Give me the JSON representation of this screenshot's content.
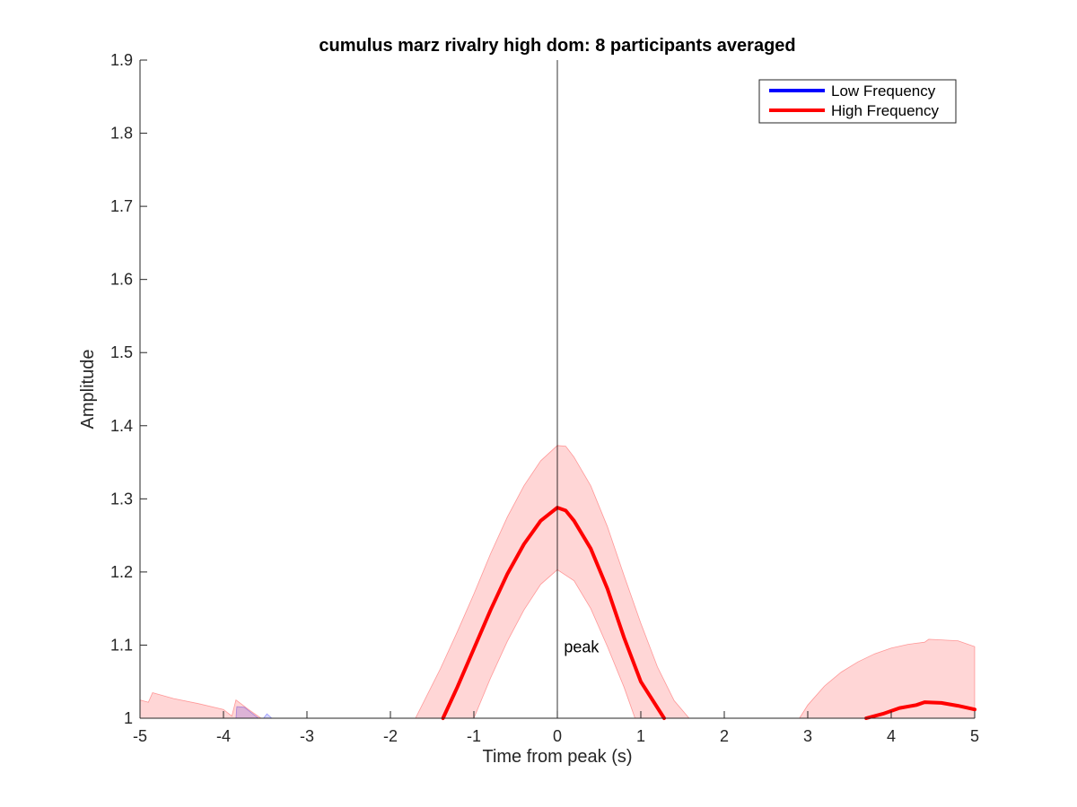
{
  "chart_data": {
    "type": "line",
    "title": "cumulus marz rivalry high dom: 8 participants averaged",
    "xlabel": "Time from peak (s)",
    "ylabel": "Amplitude",
    "xlim": [
      -5,
      5
    ],
    "ylim": [
      1,
      1.9
    ],
    "xticks": [
      -5,
      -4,
      -3,
      -2,
      -1,
      0,
      1,
      2,
      3,
      4,
      5
    ],
    "yticks": [
      1,
      1.1,
      1.2,
      1.3,
      1.4,
      1.5,
      1.6,
      1.7,
      1.8,
      1.9
    ],
    "grid": false,
    "legend_position": "top-right",
    "reference_line_x": 0,
    "annotations": [
      {
        "text": "peak",
        "x": 0.08,
        "y": 1.09
      }
    ],
    "series": [
      {
        "name": "Low Frequency",
        "color": "#0000ff",
        "line": [],
        "band_upper_segments": [
          [
            [
              -3.85,
              1.0
            ],
            [
              -3.84,
              1.016
            ],
            [
              -3.75,
              1.015
            ],
            [
              -3.65,
              1.006
            ],
            [
              -3.58,
              1.0
            ]
          ],
          [
            [
              -3.52,
              1.0
            ],
            [
              -3.48,
              1.006
            ],
            [
              -3.42,
              1.0
            ]
          ]
        ]
      },
      {
        "name": "High Frequency",
        "color": "#ff0000",
        "line_segments": [
          [
            [
              -1.37,
              1.0
            ],
            [
              -1.2,
              1.042
            ],
            [
              -1.0,
              1.095
            ],
            [
              -0.8,
              1.148
            ],
            [
              -0.6,
              1.197
            ],
            [
              -0.4,
              1.238
            ],
            [
              -0.2,
              1.27
            ],
            [
              0.0,
              1.288
            ],
            [
              0.1,
              1.284
            ],
            [
              0.2,
              1.27
            ],
            [
              0.4,
              1.232
            ],
            [
              0.6,
              1.177
            ],
            [
              0.8,
              1.11
            ],
            [
              1.0,
              1.05
            ],
            [
              1.28,
              1.0
            ]
          ],
          [
            [
              3.7,
              1.0
            ],
            [
              3.9,
              1.006
            ],
            [
              4.1,
              1.014
            ],
            [
              4.3,
              1.018
            ],
            [
              4.4,
              1.022
            ],
            [
              4.6,
              1.021
            ],
            [
              4.8,
              1.017
            ],
            [
              5.0,
              1.012
            ]
          ]
        ],
        "band_upper_segments": [
          [
            [
              -5.0,
              1.025
            ],
            [
              -4.9,
              1.022
            ],
            [
              -4.85,
              1.035
            ],
            [
              -4.6,
              1.027
            ],
            [
              -4.3,
              1.02
            ],
            [
              -4.0,
              1.012
            ],
            [
              -3.9,
              1.003
            ],
            [
              -3.85,
              1.025
            ],
            [
              -3.7,
              1.012
            ],
            [
              -3.55,
              1.0
            ]
          ],
          [
            [
              -1.7,
              1.0
            ],
            [
              -1.4,
              1.068
            ],
            [
              -1.2,
              1.118
            ],
            [
              -1.0,
              1.17
            ],
            [
              -0.8,
              1.225
            ],
            [
              -0.6,
              1.275
            ],
            [
              -0.4,
              1.318
            ],
            [
              -0.2,
              1.352
            ],
            [
              0.0,
              1.373
            ],
            [
              0.1,
              1.372
            ],
            [
              0.2,
              1.357
            ],
            [
              0.4,
              1.318
            ],
            [
              0.6,
              1.262
            ],
            [
              0.8,
              1.195
            ],
            [
              1.0,
              1.13
            ],
            [
              1.2,
              1.07
            ],
            [
              1.4,
              1.024
            ],
            [
              1.58,
              1.0
            ]
          ],
          [
            [
              2.9,
              1.0
            ],
            [
              3.0,
              1.018
            ],
            [
              3.2,
              1.044
            ],
            [
              3.4,
              1.063
            ],
            [
              3.6,
              1.077
            ],
            [
              3.8,
              1.088
            ],
            [
              4.0,
              1.096
            ],
            [
              4.2,
              1.101
            ],
            [
              4.4,
              1.104
            ],
            [
              4.45,
              1.108
            ],
            [
              4.8,
              1.106
            ],
            [
              5.0,
              1.098
            ]
          ]
        ],
        "band_lower_segments": [
          [
            [
              -1.0,
              1.0
            ],
            [
              -0.8,
              1.055
            ],
            [
              -0.6,
              1.105
            ],
            [
              -0.4,
              1.148
            ],
            [
              -0.2,
              1.183
            ],
            [
              0.0,
              1.203
            ],
            [
              0.2,
              1.188
            ],
            [
              0.4,
              1.15
            ],
            [
              0.6,
              1.098
            ],
            [
              0.8,
              1.042
            ],
            [
              0.93,
              1.0
            ]
          ]
        ]
      }
    ]
  }
}
